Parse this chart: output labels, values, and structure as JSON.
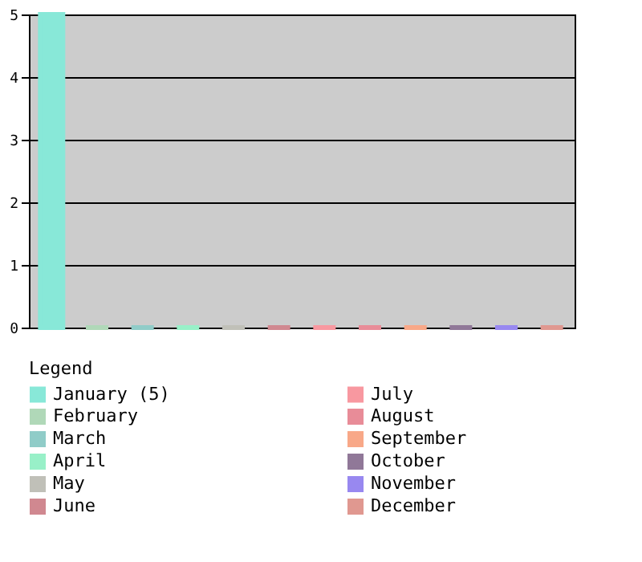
{
  "chart_data": {
    "type": "bar",
    "legend_title": "Legend",
    "categories": [
      null,
      null,
      null,
      null,
      null,
      null,
      null,
      null,
      null,
      null,
      null,
      null
    ],
    "series": [
      {
        "name": "January (5)",
        "color": "#88e8d8",
        "values": [
          5,
          null,
          null,
          null,
          null,
          null,
          null,
          null,
          null,
          null,
          null,
          null
        ]
      },
      {
        "name": "February",
        "color": "#b0d8b8",
        "values": [
          null,
          0,
          null,
          null,
          null,
          null,
          null,
          null,
          null,
          null,
          null,
          null
        ]
      },
      {
        "name": "March",
        "color": "#90ccc8",
        "values": [
          null,
          null,
          0,
          null,
          null,
          null,
          null,
          null,
          null,
          null,
          null,
          null
        ]
      },
      {
        "name": "April",
        "color": "#98f0c8",
        "values": [
          null,
          null,
          null,
          0,
          null,
          null,
          null,
          null,
          null,
          null,
          null,
          null
        ]
      },
      {
        "name": "May",
        "color": "#c0c0b8",
        "values": [
          null,
          null,
          null,
          null,
          0,
          null,
          null,
          null,
          null,
          null,
          null,
          null
        ]
      },
      {
        "name": "June",
        "color": "#d08890",
        "values": [
          null,
          null,
          null,
          null,
          null,
          0,
          null,
          null,
          null,
          null,
          null,
          null
        ]
      },
      {
        "name": "July",
        "color": "#f898a0",
        "values": [
          null,
          null,
          null,
          null,
          null,
          null,
          0,
          null,
          null,
          null,
          null,
          null
        ]
      },
      {
        "name": "August",
        "color": "#e88c98",
        "values": [
          null,
          null,
          null,
          null,
          null,
          null,
          null,
          0,
          null,
          null,
          null,
          null
        ]
      },
      {
        "name": "September",
        "color": "#f8a888",
        "values": [
          null,
          null,
          null,
          null,
          null,
          null,
          null,
          null,
          0,
          null,
          null,
          null
        ]
      },
      {
        "name": "October",
        "color": "#907898",
        "values": [
          null,
          null,
          null,
          null,
          null,
          null,
          null,
          null,
          null,
          0,
          null,
          null
        ]
      },
      {
        "name": "November",
        "color": "#9888f0",
        "values": [
          null,
          null,
          null,
          null,
          null,
          null,
          null,
          null,
          null,
          null,
          0,
          null
        ]
      },
      {
        "name": "December",
        "color": "#e09890",
        "values": [
          null,
          null,
          null,
          null,
          null,
          null,
          null,
          null,
          null,
          null,
          null,
          0
        ]
      }
    ],
    "ylim": [
      0,
      5
    ],
    "yticks": [
      0,
      1,
      2,
      3,
      4,
      5
    ],
    "grid": "y",
    "legend": "bottom"
  }
}
